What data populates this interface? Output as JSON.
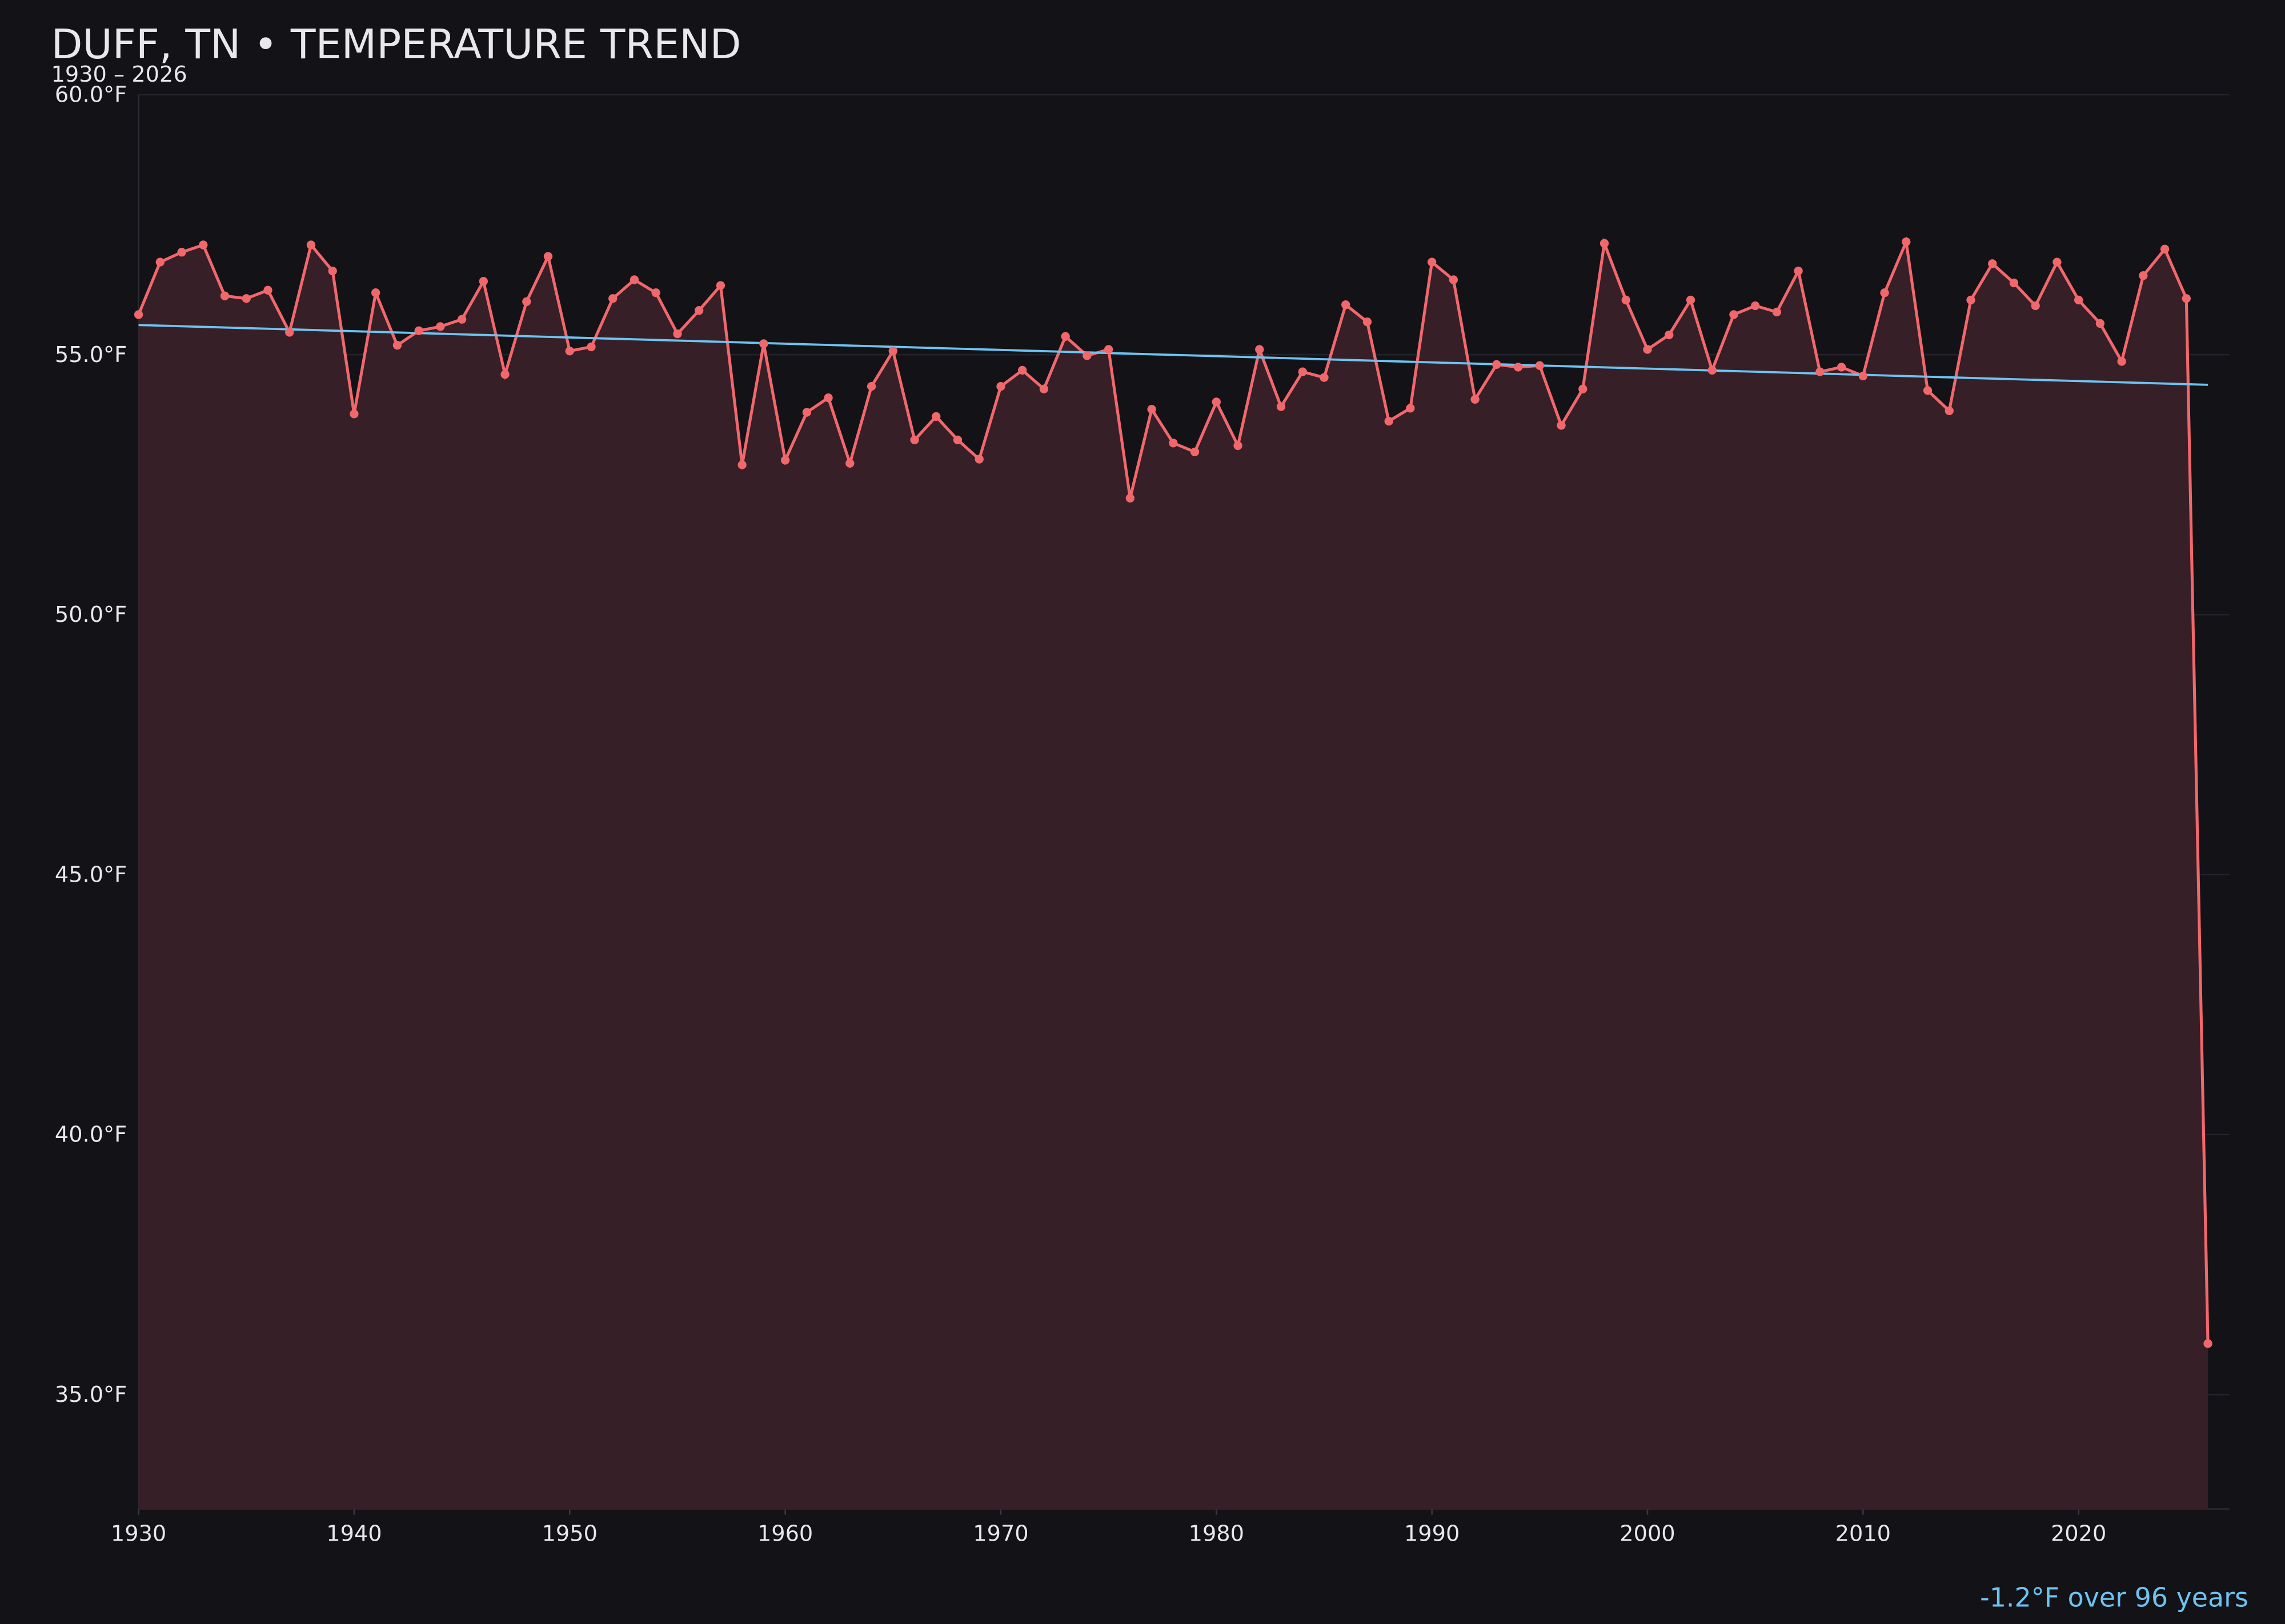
{
  "chart_data": {
    "type": "line",
    "title": "DUFF, TN • TEMPERATURE TREND",
    "subtitle": "1930 – 2026",
    "annotation": "-1.2°F over 96 years",
    "x": [
      1930,
      1931,
      1932,
      1933,
      1934,
      1935,
      1936,
      1937,
      1938,
      1939,
      1940,
      1941,
      1942,
      1943,
      1944,
      1945,
      1946,
      1947,
      1948,
      1949,
      1950,
      1951,
      1952,
      1953,
      1954,
      1955,
      1956,
      1957,
      1958,
      1959,
      1960,
      1961,
      1962,
      1963,
      1964,
      1965,
      1966,
      1967,
      1968,
      1969,
      1970,
      1971,
      1972,
      1973,
      1974,
      1975,
      1976,
      1977,
      1978,
      1979,
      1980,
      1981,
      1982,
      1983,
      1984,
      1985,
      1986,
      1987,
      1988,
      1989,
      1990,
      1991,
      1992,
      1993,
      1994,
      1995,
      1996,
      1997,
      1998,
      1999,
      2000,
      2001,
      2002,
      2003,
      2004,
      2005,
      2006,
      2007,
      2008,
      2009,
      2010,
      2011,
      2012,
      2013,
      2014,
      2015,
      2016,
      2017,
      2018,
      2019,
      2020,
      2021,
      2022,
      2023,
      2024,
      2025,
      2026
    ],
    "series": [
      {
        "color": "#f0686c",
        "fill": "#361f26",
        "values": [
          55.77,
          56.78,
          56.97,
          57.11,
          56.13,
          56.08,
          56.24,
          55.43,
          57.11,
          56.61,
          53.86,
          56.19,
          55.18,
          55.46,
          55.54,
          55.68,
          56.41,
          54.62,
          56.02,
          56.89,
          55.07,
          55.15,
          56.08,
          56.44,
          56.19,
          55.4,
          55.85,
          56.33,
          52.88,
          55.21,
          52.97,
          53.89,
          54.17,
          52.91,
          54.39,
          55.07,
          53.36,
          53.81,
          53.36,
          52.99,
          54.39,
          54.7,
          54.34,
          55.35,
          54.98,
          55.1,
          52.24,
          53.95,
          53.3,
          53.13,
          54.09,
          53.25,
          55.1,
          54.0,
          54.67,
          54.56,
          55.96,
          55.63,
          53.72,
          53.97,
          56.78,
          56.44,
          54.14,
          54.81,
          54.76,
          54.79,
          53.64,
          54.34,
          57.14,
          56.05,
          55.1,
          55.38,
          56.05,
          54.7,
          55.77,
          55.94,
          55.82,
          56.61,
          54.67,
          54.76,
          54.59,
          56.19,
          57.17,
          54.31,
          53.92,
          56.05,
          56.75,
          56.38,
          55.94,
          56.78,
          56.05,
          55.6,
          54.87,
          56.52,
          57.03,
          56.08,
          35.98
        ]
      }
    ],
    "trend": {
      "color": "#6cc4f0",
      "x": [
        1930,
        2026
      ],
      "values": [
        55.57,
        54.42
      ]
    },
    "xlim": [
      1930,
      2027
    ],
    "xticks": [
      1930,
      1940,
      1950,
      1960,
      1970,
      1980,
      1990,
      2000,
      2010,
      2020
    ],
    "ylim": [
      32.8,
      60
    ],
    "yticks": [
      {
        "value": 35,
        "label": "35.0°F"
      },
      {
        "value": 40,
        "label": "40.0°F"
      },
      {
        "value": 45,
        "label": "45.0°F"
      },
      {
        "value": 50,
        "label": "50.0°F"
      },
      {
        "value": 55,
        "label": "55.0°F"
      },
      {
        "value": 60,
        "label": "60.0°F"
      }
    ],
    "grid": true
  }
}
